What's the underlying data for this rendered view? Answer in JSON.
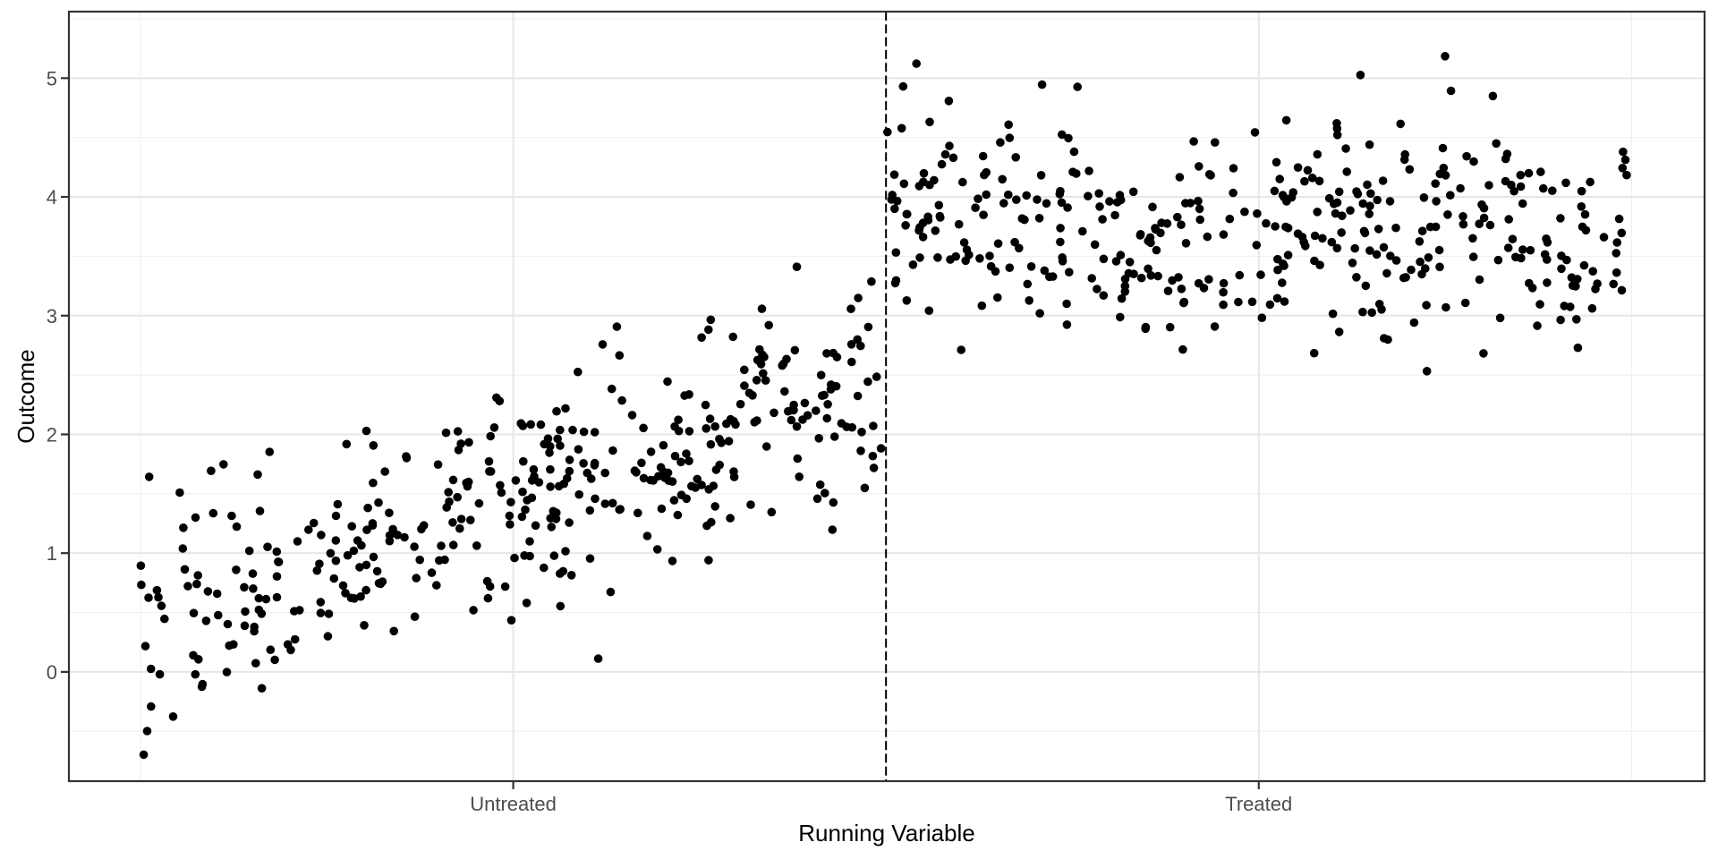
{
  "chart_data": {
    "type": "scatter",
    "title": "",
    "xlabel": "Running Variable",
    "ylabel": "Outcome",
    "x_axis": {
      "domain": [
        -0.048,
        1.049
      ],
      "major_ticks": [
        {
          "value": 0.25,
          "label": "Untreated"
        },
        {
          "value": 0.75,
          "label": "Treated"
        }
      ],
      "minor_ticks": [
        0,
        0.5,
        1
      ]
    },
    "y_axis": {
      "domain": [
        -0.92,
        5.56
      ],
      "major_ticks": [
        {
          "value": 0,
          "label": "0"
        },
        {
          "value": 1,
          "label": "1"
        },
        {
          "value": 2,
          "label": "2"
        },
        {
          "value": 3,
          "label": "3"
        },
        {
          "value": 4,
          "label": "4"
        },
        {
          "value": 5,
          "label": "5"
        }
      ],
      "minor_ticks": [
        -0.5,
        0.5,
        1.5,
        2.5,
        3.5,
        4.5,
        5.5
      ]
    },
    "cutoff_line": {
      "x": 0.5,
      "style": "dashed",
      "dash": [
        10,
        4.3
      ],
      "color": "#000000",
      "width": 2
    },
    "series": [
      {
        "name": "Untreated",
        "n": 400,
        "x_min": 0.0,
        "x_max": 0.5,
        "intercept": 0.5,
        "slope": 3.8,
        "noise_sd": 0.48
      },
      {
        "name": "Treated",
        "n": 400,
        "x_min": 0.5,
        "x_max": 1.0,
        "intercept": 4.2,
        "slope": -0.65,
        "noise_sd": 0.44
      }
    ],
    "estimated_jump_at_cutoff": 1.45,
    "observed_y_extent": [
      -0.65,
      5.27
    ],
    "point_style": {
      "color": "#000000",
      "radius": 4.8
    },
    "seed": 7,
    "grid": {
      "show": true,
      "major_color": "#E6E6E6",
      "minor_color": "#EEEEEE",
      "major_width": 2,
      "minor_width": 1
    },
    "colors": {
      "background": "#FFFFFF",
      "panel_background": "#FFFFFF",
      "panel_border": "#333333",
      "tick_mark": "#333333",
      "tick_label": "#4D4D4D",
      "axis_title": "#000000"
    },
    "fonts": {
      "tick_label_size": 22,
      "axis_title_size": 26
    },
    "legend": {
      "show": false
    }
  }
}
